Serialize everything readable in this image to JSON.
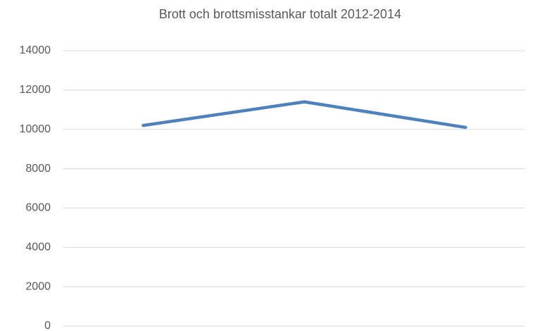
{
  "chart_data": {
    "type": "line",
    "title": "Brott och brottsmisstankar totalt 2012-2014",
    "categories": [
      null,
      null,
      null
    ],
    "series": [
      {
        "name": null,
        "color": "#4f81bd",
        "values": [
          10200,
          11400,
          10100
        ]
      }
    ],
    "ylim": [
      0,
      14000
    ],
    "yticks": [
      0,
      2000,
      4000,
      6000,
      8000,
      10000,
      12000,
      14000
    ],
    "grid": true
  }
}
